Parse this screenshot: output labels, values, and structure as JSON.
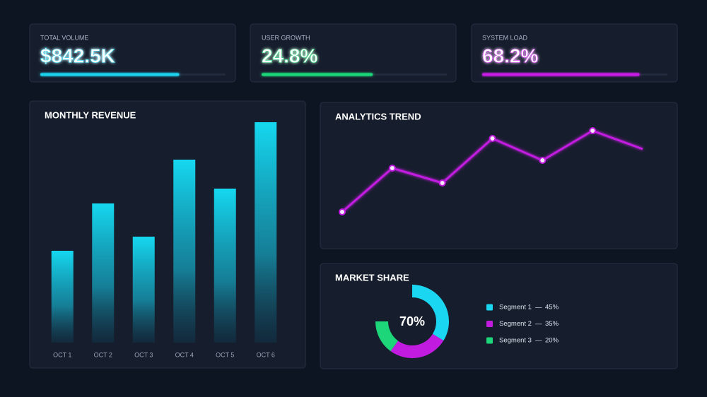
{
  "kpis": [
    {
      "label": "TOTAL VOLUME",
      "value": "$842.5K",
      "progress": 0.75,
      "color": "#1fd3f0"
    },
    {
      "label": "USER GROWTH",
      "value": "24.8%",
      "progress": 0.6,
      "color": "#1fd87a"
    },
    {
      "label": "SYSTEM LOAD",
      "value": "68.2%",
      "progress": 0.85,
      "color": "#c81ce6"
    }
  ],
  "chart_data": [
    {
      "type": "bar",
      "title": "MONTHLY REVENUE",
      "categories": [
        "OCT 1",
        "OCT 2",
        "OCT 3",
        "OCT 4",
        "OCT 5",
        "OCT 6"
      ],
      "values": [
        130,
        197,
        150,
        259,
        218,
        312
      ],
      "ylim": [
        0,
        320
      ],
      "color": "#15d8f0"
    },
    {
      "type": "line",
      "title": "ANALYTICS TREND",
      "values": [
        52,
        114,
        93,
        156,
        125,
        167,
        141
      ],
      "ylim": [
        0,
        207
      ],
      "color": "#c21be0"
    },
    {
      "type": "pie",
      "title": "MARKET SHARE",
      "center_label": "70%",
      "legend_separator": "—",
      "series": [
        {
          "name": "Segment 1",
          "value": 45,
          "value_label": "45%",
          "color": "#1ad6f0"
        },
        {
          "name": "Segment 2",
          "value": 35,
          "value_label": "35%",
          "color": "#c21be0"
        },
        {
          "name": "Segment 3",
          "value": 20,
          "value_label": "20%",
          "color": "#1ed67a"
        }
      ]
    }
  ]
}
